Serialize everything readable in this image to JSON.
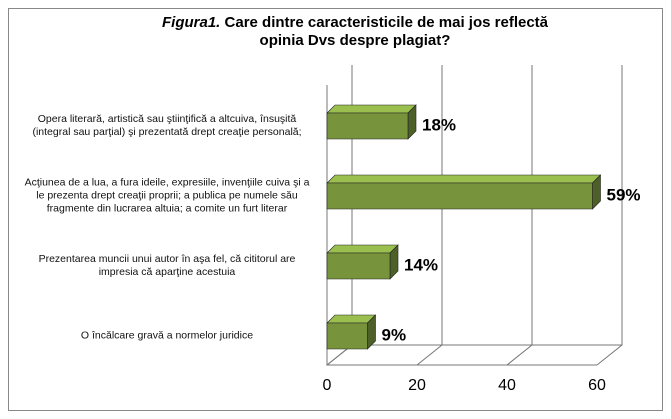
{
  "chart_data": {
    "type": "bar3d-horizontal",
    "title_prefix": "Figura1.",
    "title": "Care dintre caracteristicile de mai jos reflectă opinia Dvs despre plagiat?",
    "categories": [
      "Opera literară, artistică sau ştiinţifică a altcuiva, însuşită (integral sau parţial) şi prezentată drept creaţie personală;",
      "Acţiunea de a lua, a fura ideile, expresiile, invenţiile cuiva şi a le prezenta drept creaţii proprii; a publica pe numele său fragmente din lucrarea altuia; a comite un furt literar",
      "Prezentarea muncii unui autor în aşa fel, că cititorul are impresia că aparţine acestuia",
      "O încălcare gravă a normelor juridice"
    ],
    "values": [
      18,
      59,
      14,
      9
    ],
    "value_labels": [
      "18%",
      "59%",
      "14%",
      "9%"
    ],
    "color": "#77933c",
    "xlim": [
      0,
      60
    ],
    "xticks": [
      0,
      20,
      40,
      60
    ],
    "grid": true
  }
}
